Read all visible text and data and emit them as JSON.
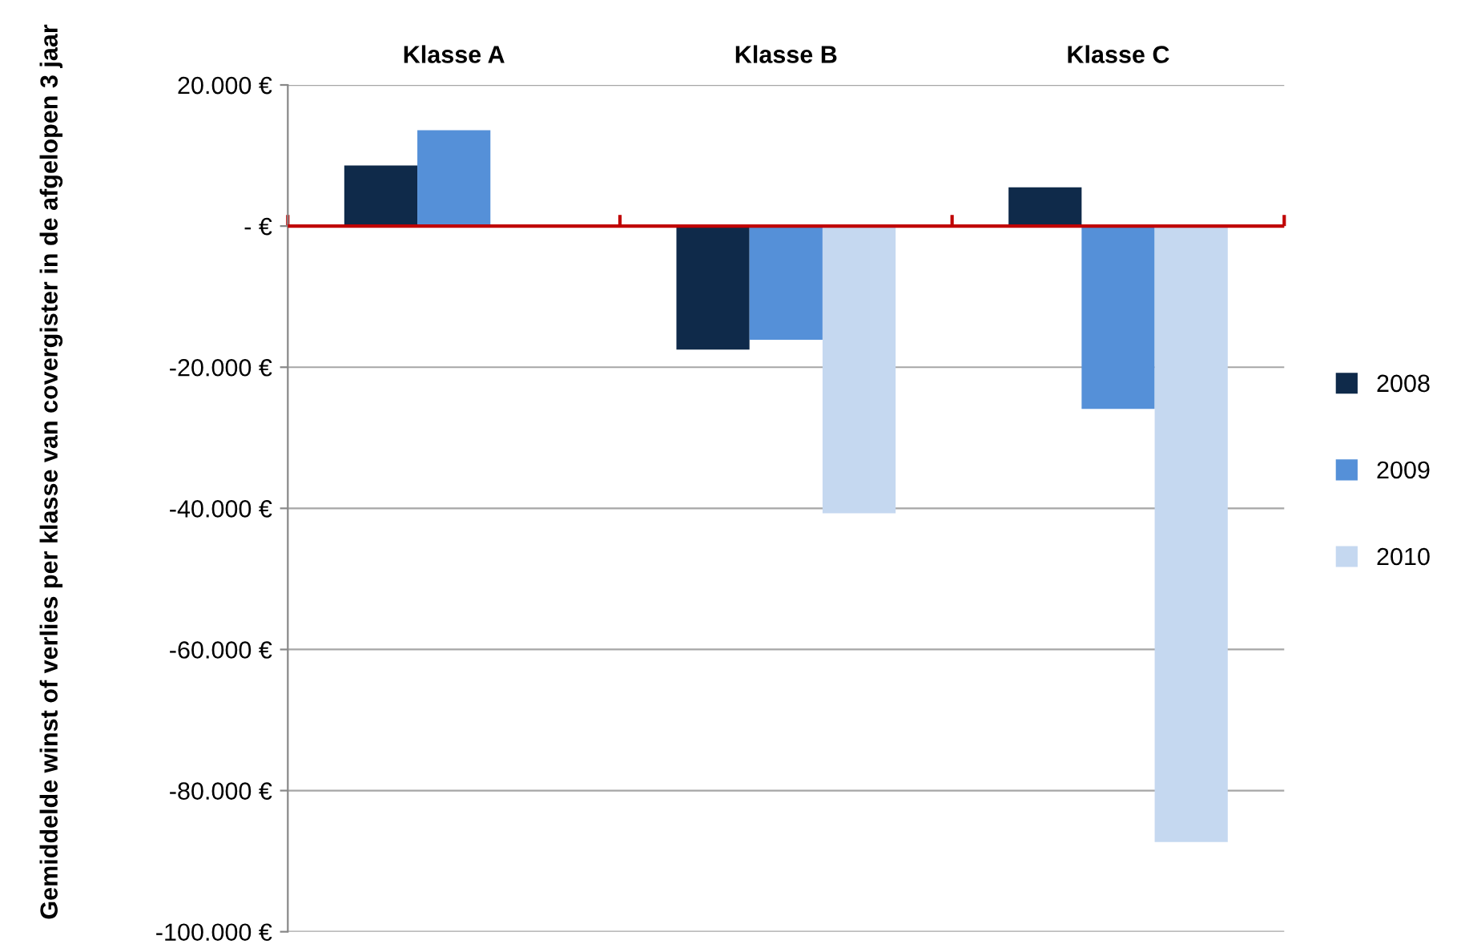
{
  "chart_data": {
    "type": "bar",
    "ylabel": "Gemiddelde winst of verlies per klasse van covergister in de afgelopen 3 jaar",
    "categories": [
      "Klasse A",
      "Klasse B",
      "Klasse C"
    ],
    "series": [
      {
        "name": "2008",
        "color": "#0f2a4a",
        "values": [
          8600,
          -17500,
          5500
        ]
      },
      {
        "name": "2009",
        "color": "#5590d8",
        "values": [
          13600,
          -16100,
          -25900
        ]
      },
      {
        "name": "2010",
        "color": "#c5d8f0",
        "values": [
          null,
          -40700,
          -87300
        ]
      }
    ],
    "ylim": [
      -100000,
      20000
    ],
    "yticks": [
      {
        "value": 20000,
        "label": "20.000 €"
      },
      {
        "value": 0,
        "label": "- €"
      },
      {
        "value": -20000,
        "label": "-20.000 €"
      },
      {
        "value": -40000,
        "label": "-40.000 €"
      },
      {
        "value": -60000,
        "label": "-60.000 €"
      },
      {
        "value": -80000,
        "label": "-80.000 €"
      },
      {
        "value": -100000,
        "label": "-100.000 €"
      }
    ],
    "ref_lines": [
      {
        "axis": "y",
        "value": 0,
        "label": null,
        "color": "#c00000"
      }
    ],
    "grid": "y",
    "legend": "right"
  }
}
